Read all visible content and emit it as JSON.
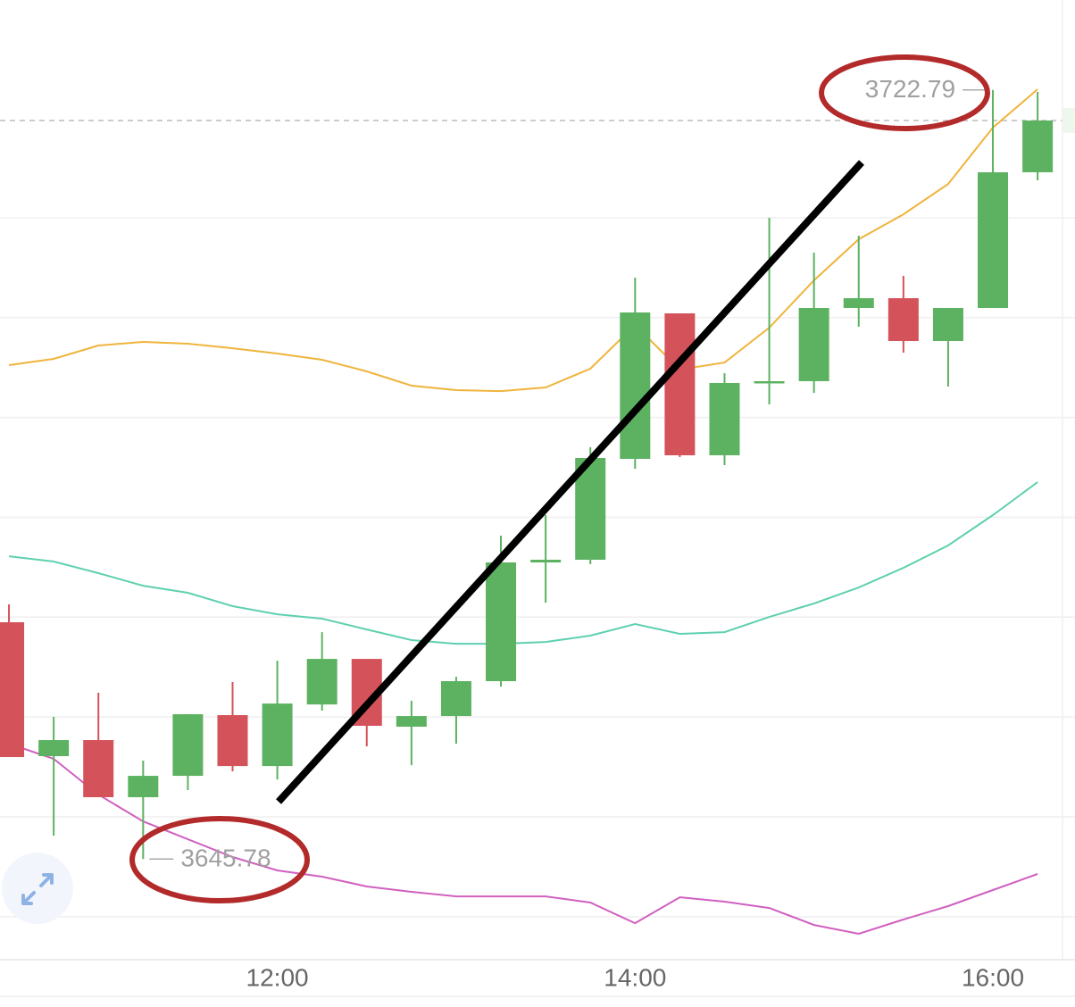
{
  "chart_data": {
    "type": "candlestick",
    "categories": [
      null,
      null,
      null,
      null,
      null,
      null,
      "12:00",
      null,
      null,
      null,
      null,
      null,
      null,
      null,
      "14:00",
      null,
      null,
      null,
      null,
      null,
      null,
      null,
      "16:00",
      null
    ],
    "open": [
      3669.49,
      3656.08,
      3657.69,
      3651.97,
      3654.11,
      3660.19,
      3655.09,
      3661.26,
      3665.82,
      3659.03,
      3660.1,
      3663.59,
      3675.48,
      3675.75,
      3685.85,
      3700.42,
      3686.21,
      3693.45,
      3693.63,
      3700.96,
      3701.94,
      3697.65,
      3700.96,
      3714.55
    ],
    "high": [
      3671.28,
      3660.01,
      3662.43,
      3655.63,
      3660.28,
      3663.5,
      3665.64,
      3668.5,
      3665.82,
      3661.62,
      3664.03,
      3678.16,
      3680.22,
      3687.01,
      3704.0,
      3700.42,
      3694.43,
      3709.99,
      3706.5,
      3708.2,
      3704.18,
      3700.96,
      3722.79,
      3722.59
    ],
    "low": [
      3655.99,
      3648.12,
      3651.97,
      3645.78,
      3652.68,
      3654.56,
      3653.75,
      3660.64,
      3657.06,
      3655.18,
      3657.33,
      3663.05,
      3671.45,
      3675.3,
      3684.86,
      3686.03,
      3685.22,
      3691.3,
      3692.46,
      3699.08,
      3696.49,
      3693.09,
      3700.96,
      3713.74
    ],
    "close": [
      3655.99,
      3657.69,
      3651.97,
      3654.11,
      3660.28,
      3655.09,
      3661.35,
      3665.82,
      3659.12,
      3660.1,
      3663.59,
      3675.48,
      3675.75,
      3685.94,
      3700.51,
      3686.21,
      3693.45,
      3693.63,
      3700.96,
      3701.94,
      3697.65,
      3700.96,
      3714.55,
      3719.73
    ],
    "up_color": "#5cb260",
    "down_color": "#d4525a",
    "lines": [
      {
        "color": "#f0b43c",
        "values": [
          3695.24,
          3695.86,
          3697.2,
          3697.56,
          3697.38,
          3696.93,
          3696.4,
          3695.77,
          3694.61,
          3693.18,
          3692.73,
          3692.64,
          3693.0,
          3694.88,
          3699.26,
          3694.79,
          3695.5,
          3698.99,
          3703.73,
          3707.84,
          3710.34,
          3713.38,
          3719.02,
          3722.86
        ]
      },
      {
        "color": "#5fd0b0",
        "values": [
          3676.1,
          3675.57,
          3674.41,
          3673.15,
          3672.44,
          3671.1,
          3670.29,
          3669.85,
          3668.77,
          3667.7,
          3667.34,
          3667.34,
          3667.52,
          3668.15,
          3669.31,
          3668.33,
          3668.5,
          3670.02,
          3671.37,
          3672.97,
          3674.94,
          3677.18,
          3680.22,
          3683.52
        ]
      },
      {
        "color": "#d060c0",
        "values": [
          3657.33,
          3655.81,
          3652.23,
          3649.55,
          3647.76,
          3645.98,
          3644.64,
          3644.01,
          3643.03,
          3642.49,
          3642.04,
          3642.04,
          3642.04,
          3641.42,
          3639.36,
          3641.95,
          3641.51,
          3640.88,
          3639.18,
          3638.29,
          3639.72,
          3641.06,
          3642.67,
          3644.28
        ]
      }
    ],
    "ylim": [
      3635.7,
      3731.8
    ],
    "yticks": [
      3630,
      3640,
      3650,
      3660,
      3670,
      3680,
      3690,
      3700,
      3710
    ],
    "grid": true
  }
}
